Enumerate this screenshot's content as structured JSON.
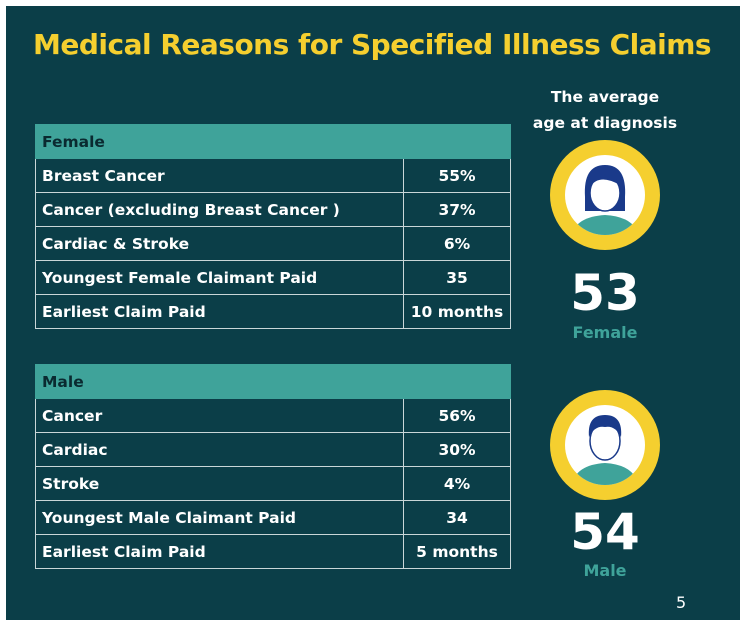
{
  "header": {
    "title": "Medical Reasons for Specified Illness Claims"
  },
  "tables": [
    {
      "heading": "Female",
      "rows": [
        [
          "Breast Cancer",
          "55%"
        ],
        [
          "Cancer (excluding Breast Cancer )",
          "37%"
        ],
        [
          "Cardiac & Stroke",
          "6%"
        ],
        [
          "Youngest Female Claimant Paid",
          "35"
        ],
        [
          "Earliest Claim Paid",
          "10 months"
        ]
      ]
    },
    {
      "heading": "Male",
      "rows": [
        [
          "Cancer",
          "56%"
        ],
        [
          "Cardiac",
          "30%"
        ],
        [
          "Stroke",
          "4%"
        ],
        [
          "Youngest Male Claimant Paid",
          "34"
        ],
        [
          "Earliest Claim Paid",
          "5 months"
        ]
      ]
    }
  ],
  "side": {
    "caption_line1": "The average",
    "caption_line2": "age at diagnosis",
    "profiles": [
      {
        "age": "53",
        "label": "Female"
      },
      {
        "age": "54",
        "label": "Male"
      }
    ]
  },
  "footer": {
    "page_number": "5"
  }
}
